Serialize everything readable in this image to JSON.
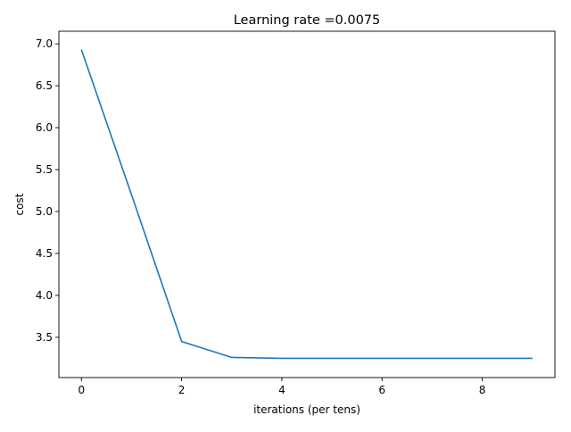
{
  "chart_data": {
    "type": "line",
    "title": "Learning rate =0.0075",
    "xlabel": "iterations (per tens)",
    "ylabel": "cost",
    "xlim": [
      -0.45,
      9.45
    ],
    "ylim": [
      3.02,
      7.15
    ],
    "x_ticks": [
      0,
      2,
      4,
      6,
      8
    ],
    "x_tick_labels": [
      "0",
      "2",
      "4",
      "6",
      "8"
    ],
    "y_ticks": [
      3.5,
      4.0,
      4.5,
      5.0,
      5.5,
      6.0,
      6.5,
      7.0
    ],
    "y_tick_labels": [
      "3.5",
      "4.0",
      "4.5",
      "5.0",
      "5.5",
      "6.0",
      "6.5",
      "7.0"
    ],
    "grid": false,
    "line_color": "#1f77b4",
    "series": [
      {
        "x": [
          0,
          1,
          2,
          3,
          4,
          5,
          6,
          7,
          8,
          9
        ],
        "values": [
          6.93,
          5.2,
          3.45,
          3.26,
          3.25,
          3.25,
          3.25,
          3.25,
          3.25,
          3.25
        ]
      }
    ]
  }
}
